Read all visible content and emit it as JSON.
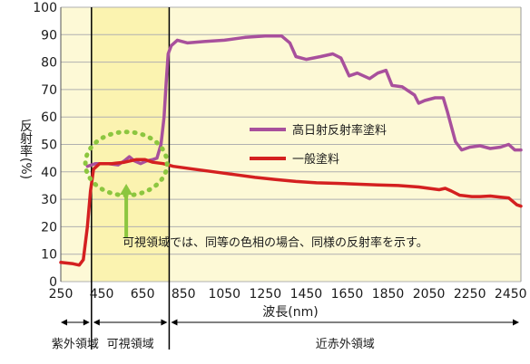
{
  "chart_data": {
    "type": "line",
    "title": "",
    "xlabel": "波長(nm)",
    "ylabel": "反射率(%)",
    "xlim": [
      250,
      2500
    ],
    "ylim": [
      0,
      100
    ],
    "xticks": [
      250,
      450,
      650,
      850,
      1050,
      1250,
      1450,
      1650,
      1850,
      2050,
      2250,
      2450
    ],
    "xtick_labels": [
      "250",
      "450",
      "650",
      "850",
      "1050",
      "1250",
      "1450",
      "1650",
      "1850",
      "2050",
      "2250",
      "2450"
    ],
    "yticks": [
      0,
      10,
      20,
      30,
      40,
      50,
      60,
      70,
      80,
      90,
      100
    ],
    "ytick_labels": [
      "0",
      "10",
      "20",
      "30",
      "40",
      "50",
      "60",
      "70",
      "80",
      "90",
      "100"
    ],
    "grid": true,
    "legend_position": "center-right",
    "series": [
      {
        "name": "高日射反射率塗料",
        "color": "#a8509c",
        "points": [
          [
            380,
            42
          ],
          [
            420,
            43
          ],
          [
            480,
            43
          ],
          [
            530,
            42.5
          ],
          [
            560,
            44
          ],
          [
            585,
            45.5
          ],
          [
            610,
            44
          ],
          [
            640,
            43
          ],
          [
            670,
            44
          ],
          [
            700,
            44.5
          ],
          [
            720,
            45
          ],
          [
            740,
            50
          ],
          [
            755,
            60
          ],
          [
            765,
            72
          ],
          [
            775,
            83
          ],
          [
            790,
            86
          ],
          [
            820,
            88
          ],
          [
            870,
            87
          ],
          [
            950,
            87.5
          ],
          [
            1050,
            88
          ],
          [
            1150,
            89
          ],
          [
            1250,
            89.5
          ],
          [
            1330,
            89.5
          ],
          [
            1370,
            87
          ],
          [
            1400,
            82
          ],
          [
            1450,
            81
          ],
          [
            1520,
            82
          ],
          [
            1580,
            83
          ],
          [
            1620,
            81.5
          ],
          [
            1660,
            75
          ],
          [
            1700,
            76
          ],
          [
            1760,
            74
          ],
          [
            1800,
            76
          ],
          [
            1840,
            77
          ],
          [
            1870,
            71.5
          ],
          [
            1920,
            71
          ],
          [
            1980,
            68
          ],
          [
            2000,
            65
          ],
          [
            2030,
            66
          ],
          [
            2080,
            67
          ],
          [
            2120,
            67
          ],
          [
            2140,
            62
          ],
          [
            2180,
            51
          ],
          [
            2210,
            48
          ],
          [
            2250,
            49
          ],
          [
            2300,
            49.5
          ],
          [
            2350,
            48.5
          ],
          [
            2400,
            49
          ],
          [
            2440,
            50
          ],
          [
            2470,
            48
          ],
          [
            2500,
            48
          ]
        ]
      },
      {
        "name": "一般塗料",
        "color": "#d42020",
        "points": [
          [
            250,
            7
          ],
          [
            310,
            6.5
          ],
          [
            340,
            6
          ],
          [
            360,
            8
          ],
          [
            380,
            20
          ],
          [
            395,
            33
          ],
          [
            410,
            41
          ],
          [
            440,
            43
          ],
          [
            500,
            43
          ],
          [
            560,
            43.5
          ],
          [
            620,
            44.5
          ],
          [
            660,
            44.5
          ],
          [
            700,
            43.5
          ],
          [
            750,
            43
          ],
          [
            800,
            42
          ],
          [
            900,
            41
          ],
          [
            1000,
            40
          ],
          [
            1100,
            39
          ],
          [
            1200,
            38
          ],
          [
            1300,
            37.2
          ],
          [
            1400,
            36.5
          ],
          [
            1500,
            36
          ],
          [
            1600,
            35.8
          ],
          [
            1700,
            35.5
          ],
          [
            1800,
            35.2
          ],
          [
            1900,
            35
          ],
          [
            2000,
            34.5
          ],
          [
            2050,
            34
          ],
          [
            2100,
            33.5
          ],
          [
            2130,
            34
          ],
          [
            2160,
            33
          ],
          [
            2200,
            31.5
          ],
          [
            2260,
            31
          ],
          [
            2300,
            31
          ],
          [
            2350,
            31.2
          ],
          [
            2400,
            30.8
          ],
          [
            2440,
            30.5
          ],
          [
            2480,
            28
          ],
          [
            2500,
            27.5
          ]
        ]
      }
    ],
    "regions": [
      {
        "label": "紫外領域",
        "x_start": 250,
        "x_end": 400
      },
      {
        "label": "可視領域",
        "x_start": 400,
        "x_end": 780
      },
      {
        "label": "近赤外領域",
        "x_start": 780,
        "x_end": 2500
      }
    ],
    "annotation": {
      "text": "可視領域では、同等の色相の場合、同様の反射率を示す。",
      "circle_center": [
        570,
        43
      ],
      "arrow_from": [
        570,
        16
      ],
      "arrow_to": [
        570,
        35
      ]
    },
    "colors": {
      "visible_band": "#fbf3b0",
      "other_band": "#fdf9d6",
      "grid": "#b0b0b0",
      "divider": "#000000",
      "annotation": "#8cc63f"
    }
  }
}
